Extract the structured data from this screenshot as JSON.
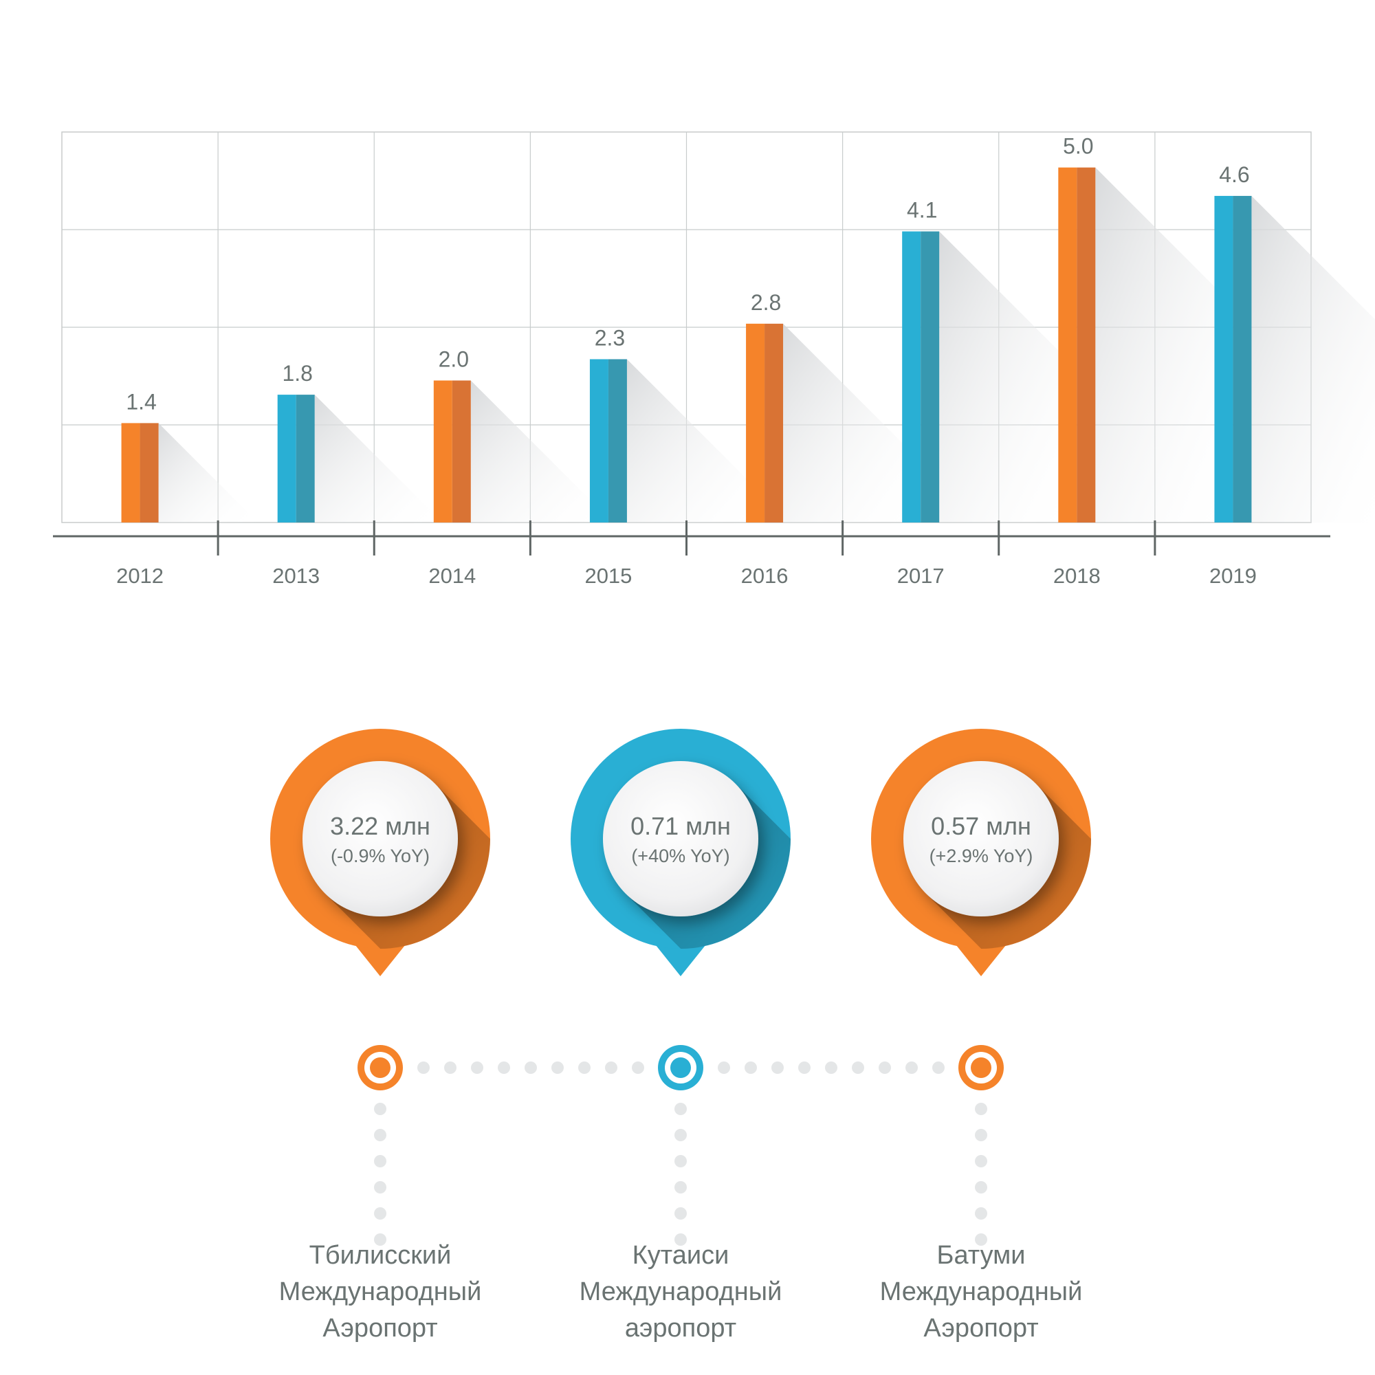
{
  "chart_data": {
    "type": "bar",
    "categories": [
      "2012",
      "2013",
      "2014",
      "2015",
      "2016",
      "2017",
      "2018",
      "2019"
    ],
    "values": [
      1.4,
      1.8,
      2.0,
      2.3,
      2.8,
      4.1,
      5.0,
      4.6
    ],
    "value_labels": [
      "1.4",
      "1.8",
      "2.0",
      "2.3",
      "2.8",
      "4.1",
      "5.0",
      "4.6"
    ],
    "bar_colors": [
      "orange",
      "blue",
      "orange",
      "blue",
      "orange",
      "blue",
      "orange",
      "blue"
    ],
    "ylim": [
      0,
      5.5
    ],
    "grid": true,
    "title": "",
    "xlabel": "",
    "ylabel": ""
  },
  "colors": {
    "orange": "#f5832a",
    "orange_dark": "#d97334",
    "blue": "#29afd4",
    "blue_dark": "#3798b0",
    "text": "#6a7372",
    "grid": "#c8cccc",
    "axis": "#5f6665",
    "dot": "#e4e6e7"
  },
  "airports": [
    {
      "value": "3.22 млн",
      "change": "(-0.9% YoY)",
      "color": "orange",
      "name_lines": [
        "Тбилисский",
        "Международный",
        "Аэропорт"
      ]
    },
    {
      "value": "0.71 млн",
      "change": "(+40% YoY)",
      "color": "blue",
      "name_lines": [
        "Кутаиси",
        "Международный",
        "аэропорт"
      ]
    },
    {
      "value": "0.57 млн",
      "change": "(+2.9% YoY)",
      "color": "orange",
      "name_lines": [
        "Батуми",
        "Международный",
        "Аэропорт"
      ]
    }
  ]
}
